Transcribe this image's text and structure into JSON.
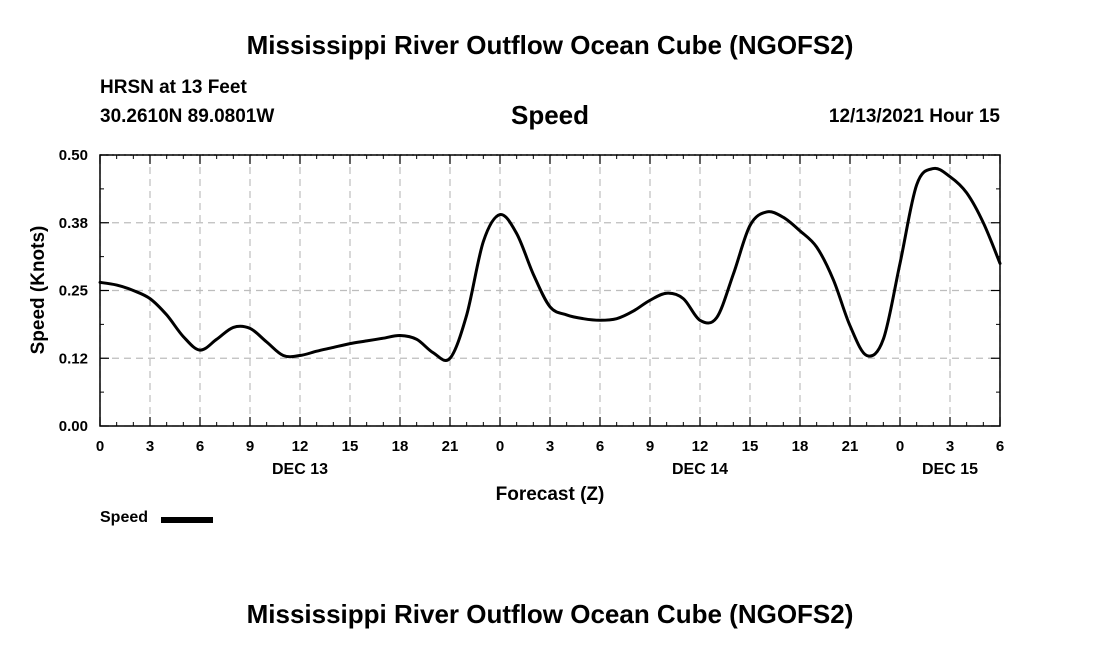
{
  "page": {
    "title": "Mississippi River Outflow Ocean Cube (NGOFS2)",
    "footer_title": "Mississippi River Outflow Ocean Cube (NGOFS2)",
    "station": "HRSN at 13 Feet",
    "coords": "30.2610N  89.0801W",
    "subtitle": "Speed",
    "timestamp": "12/13/2021 Hour 15"
  },
  "chart_data": {
    "type": "line",
    "title": "Speed",
    "xlabel": "Forecast (Z)",
    "ylabel": "Speed (Knots)",
    "ylim": [
      0,
      0.5
    ],
    "xlim": [
      0,
      54
    ],
    "yticks": [
      "0.00",
      "0.12",
      "0.25",
      "0.38",
      "0.50"
    ],
    "ytick_values": [
      0,
      0.125,
      0.25,
      0.375,
      0.5
    ],
    "xticks": [
      "0",
      "3",
      "6",
      "9",
      "12",
      "15",
      "18",
      "21",
      "0",
      "3",
      "6",
      "9",
      "12",
      "15",
      "18",
      "21",
      "0",
      "3",
      "6"
    ],
    "xtick_values": [
      0,
      3,
      6,
      9,
      12,
      15,
      18,
      21,
      24,
      27,
      30,
      33,
      36,
      39,
      42,
      45,
      48,
      51,
      54
    ],
    "day_labels": [
      {
        "label": "DEC 13",
        "x": 12
      },
      {
        "label": "DEC 14",
        "x": 36
      },
      {
        "label": "DEC 15",
        "x": 51
      }
    ],
    "legend": "Speed",
    "series": [
      {
        "name": "Speed",
        "color": "#000000",
        "x": [
          0,
          1,
          2,
          3,
          4,
          5,
          6,
          7,
          8,
          9,
          10,
          11,
          12,
          13,
          14,
          15,
          16,
          17,
          18,
          19,
          20,
          21,
          22,
          23,
          24,
          25,
          26,
          27,
          28,
          29,
          30,
          31,
          32,
          33,
          34,
          35,
          36,
          37,
          38,
          39,
          40,
          41,
          42,
          43,
          44,
          45,
          46,
          47,
          48,
          49,
          50,
          51,
          52,
          53,
          54
        ],
        "values": [
          0.265,
          0.26,
          0.25,
          0.235,
          0.205,
          0.165,
          0.14,
          0.16,
          0.182,
          0.18,
          0.155,
          0.13,
          0.13,
          0.138,
          0.145,
          0.152,
          0.157,
          0.162,
          0.167,
          0.16,
          0.135,
          0.125,
          0.205,
          0.34,
          0.39,
          0.355,
          0.28,
          0.22,
          0.205,
          0.198,
          0.195,
          0.198,
          0.212,
          0.232,
          0.245,
          0.235,
          0.195,
          0.2,
          0.28,
          0.37,
          0.395,
          0.385,
          0.36,
          0.33,
          0.27,
          0.185,
          0.13,
          0.16,
          0.3,
          0.445,
          0.475,
          0.46,
          0.43,
          0.375,
          0.3
        ]
      }
    ]
  }
}
